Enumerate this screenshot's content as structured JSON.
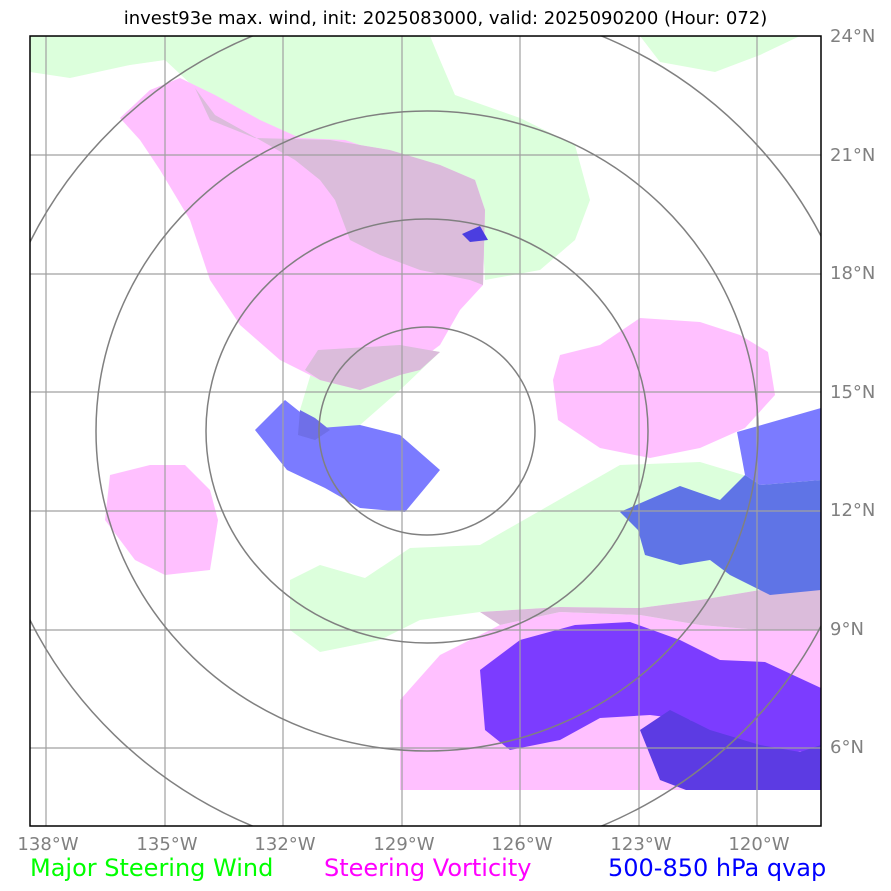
{
  "title": "invest93e max. wind, init: 2025083000, valid: 2025090200 (Hour: 072)",
  "lat_labels": [
    "24°N",
    "21°N",
    "18°N",
    "15°N",
    "12°N",
    "9°N",
    "6°N"
  ],
  "lon_labels": [
    "138°W",
    "135°W",
    "132°W",
    "129°W",
    "126°W",
    "123°W",
    "120°W"
  ],
  "legend": {
    "wind": "Major Steering Wind",
    "vorticity": "Steering Vorticity",
    "qvap": "500-850 hPa qvap"
  },
  "colors": {
    "wind": "#00ff00",
    "wind_fill": "#dcffdc",
    "vorticity": "#ff00ff",
    "vorticity_fill": "#ffc0ff",
    "overlap_fill": "#dbbcdb",
    "qvap": "#0000ff",
    "qvap_fill_light": "#7b7bff",
    "qvap_fill_mid": "#5f74e6",
    "qvap_fill_dark": "#7c3cff",
    "grid": "#a0a0a0",
    "rings": "#808080"
  }
}
